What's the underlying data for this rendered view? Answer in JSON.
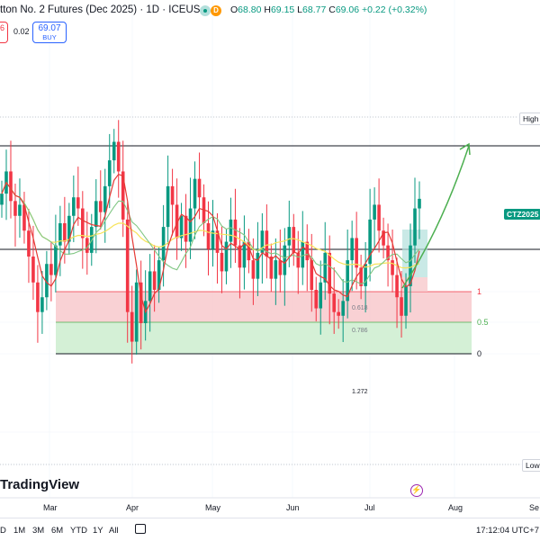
{
  "header": {
    "title": "tton No. 2 Futures (Dec 2025) · 1D · ICEUS",
    "d_badge": "D",
    "ohlc": [
      {
        "k": "O",
        "v": "68.80"
      },
      {
        "k": "H",
        "v": "69.15"
      },
      {
        "k": "L",
        "v": "68.77"
      },
      {
        "k": "C",
        "v": "69.06"
      },
      {
        "k": "",
        "v": "+0.22 (+0.32%)"
      }
    ]
  },
  "trade": {
    "sell_fragment": "6",
    "spread": "0.02",
    "buy_price": "69.07",
    "buy_label": "BUY"
  },
  "price_tags": {
    "high": "High",
    "low": "Low",
    "symbol": "CTZ2025"
  },
  "fib_labels": {
    "l1": "1",
    "l05": "0.5",
    "l0": "0",
    "l0618": "0.618",
    "l0786": "0.786",
    "l1272": "1.272"
  },
  "logo_text": "TradingView",
  "x_axis_labels": [
    "Mar",
    "Apr",
    "May",
    "Jun",
    "Jul",
    "Aug",
    "Se"
  ],
  "timeframes": [
    "D",
    "1M",
    "3M",
    "6M",
    "YTD",
    "1Y",
    "All"
  ],
  "clock": "17:12:04 UTC+7",
  "colors": {
    "up": "#089981",
    "down": "#f23645",
    "ma_yellow": "#f7e35a",
    "ma_green": "#81c784",
    "ma_red": "#e53935",
    "fib_red": "#f8c9cc",
    "fib_green": "#cfeed1",
    "arrow": "#4caf50"
  },
  "chart_data": {
    "type": "candlestick",
    "symbol": "CTZ2025",
    "x_ticks": [
      "Mar",
      "Apr",
      "May",
      "Jun",
      "Jul",
      "Aug",
      "Se"
    ],
    "note_values": "approximate price path read from the image (unlabeled y-axis)",
    "candles_close": [
      69.2,
      69.8,
      69.0,
      68.6,
      68.9,
      68.2,
      67.5,
      66.8,
      66.0,
      66.4,
      67.3,
      67.0,
      67.8,
      68.4,
      67.9,
      68.6,
      69.1,
      68.8,
      68.0,
      67.6,
      68.3,
      69.0,
      68.7,
      69.4,
      70.1,
      70.6,
      69.8,
      68.5,
      66.0,
      65.2,
      66.8,
      65.7,
      66.3,
      67.1,
      66.6,
      67.4,
      68.3,
      69.4,
      68.9,
      68.0,
      68.6,
      67.9,
      68.8,
      69.6,
      69.1,
      68.4,
      67.7,
      68.2,
      67.6,
      67.1,
      67.9,
      68.5,
      67.8,
      67.2,
      67.9,
      67.4,
      66.9,
      67.6,
      68.2,
      67.5,
      66.9,
      67.4,
      67.0,
      67.8,
      68.3,
      67.6,
      67.2,
      67.9,
      67.4,
      66.6,
      66.1,
      66.8,
      67.6,
      66.5,
      66.0,
      65.9,
      66.3,
      67.4,
      68.0,
      67.2,
      66.7,
      67.3,
      68.5,
      68.9,
      68.2,
      67.8,
      67.4,
      67.0,
      66.4,
      65.9,
      66.7,
      67.8,
      68.8,
      69.06
    ]
  }
}
